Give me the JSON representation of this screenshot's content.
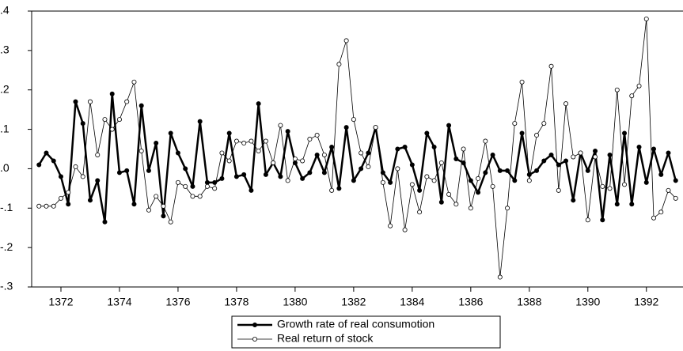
{
  "chart_data": {
    "type": "line",
    "x": [
      1371.25,
      1371.5,
      1371.75,
      1372,
      1372.25,
      1372.5,
      1372.75,
      1373,
      1373.25,
      1373.5,
      1373.75,
      1374,
      1374.25,
      1374.5,
      1374.75,
      1375,
      1375.25,
      1375.5,
      1375.75,
      1376,
      1376.25,
      1376.5,
      1376.75,
      1377,
      1377.25,
      1377.5,
      1377.75,
      1378,
      1378.25,
      1378.5,
      1378.75,
      1379,
      1379.25,
      1379.5,
      1379.75,
      1380,
      1380.25,
      1380.5,
      1380.75,
      1381,
      1381.25,
      1381.5,
      1381.75,
      1382,
      1382.25,
      1382.5,
      1382.75,
      1383,
      1383.25,
      1383.5,
      1383.75,
      1384,
      1384.25,
      1384.5,
      1384.75,
      1385,
      1385.25,
      1385.5,
      1385.75,
      1386,
      1386.25,
      1386.5,
      1386.75,
      1387,
      1387.25,
      1387.5,
      1387.75,
      1388,
      1388.25,
      1388.5,
      1388.75,
      1389,
      1389.25,
      1389.5,
      1389.75,
      1390,
      1390.25,
      1390.5,
      1390.75,
      1391,
      1391.25,
      1391.5,
      1391.75,
      1392,
      1392.25,
      1392.5,
      1392.75,
      1393
    ],
    "series": [
      {
        "name": "Growth rate of real consumotion",
        "color": "#000000",
        "values": [
          0.01,
          0.04,
          0.02,
          -0.02,
          -0.09,
          0.17,
          0.115,
          -0.08,
          -0.03,
          -0.135,
          0.19,
          -0.01,
          -0.005,
          -0.09,
          0.16,
          -0.005,
          0.065,
          -0.12,
          0.09,
          0.04,
          0,
          -0.045,
          0.12,
          -0.035,
          -0.035,
          -0.025,
          0.09,
          -0.02,
          -0.015,
          -0.055,
          0.165,
          -0.015,
          0.015,
          -0.02,
          0.095,
          0.015,
          -0.025,
          -0.01,
          0.035,
          -0.01,
          0.055,
          -0.05,
          0.105,
          -0.03,
          0,
          0.04,
          0.105,
          -0.01,
          -0.035,
          0.05,
          0.055,
          0.01,
          -0.055,
          0.09,
          0.055,
          -0.085,
          0.11,
          0.025,
          0.015,
          -0.03,
          -0.06,
          -0.01,
          0.035,
          -0.005,
          -0.005,
          -0.03,
          0.09,
          -0.015,
          -0.005,
          0.02,
          0.035,
          0.01,
          0.02,
          -0.08,
          0.04,
          -0.005,
          0.045,
          -0.13,
          0.035,
          -0.09,
          0.09,
          -0.09,
          0.055,
          -0.035,
          0.05,
          -0.015,
          0.04,
          -0.03
        ]
      },
      {
        "name": "Real return of stock",
        "color": "#000000",
        "values": [
          -0.095,
          -0.095,
          -0.095,
          -0.075,
          -0.06,
          0.005,
          -0.02,
          0.17,
          0.035,
          0.125,
          0.1,
          0.125,
          0.17,
          0.22,
          0.045,
          -0.105,
          -0.07,
          -0.095,
          -0.135,
          -0.035,
          -0.045,
          -0.07,
          -0.07,
          -0.045,
          -0.05,
          0.04,
          0.02,
          0.07,
          0.065,
          0.07,
          0.045,
          0.07,
          0.015,
          0.11,
          -0.03,
          0.025,
          0.02,
          0.075,
          0.085,
          0.035,
          -0.055,
          0.265,
          0.325,
          0.125,
          0.04,
          0.005,
          0.105,
          -0.035,
          -0.145,
          0,
          -0.155,
          -0.04,
          -0.11,
          -0.02,
          -0.03,
          0.015,
          -0.065,
          -0.09,
          0.05,
          -0.1,
          -0.025,
          0.07,
          -0.045,
          -0.275,
          -0.1,
          0.115,
          0.22,
          -0.03,
          0.085,
          0.115,
          0.26,
          -0.055,
          0.165,
          0.03,
          0.04,
          -0.13,
          0.03,
          -0.045,
          -0.05,
          0.2,
          -0.04,
          0.185,
          0.21,
          0.38,
          -0.125,
          -0.11,
          -0.055,
          -0.075
        ]
      }
    ],
    "xlim": [
      1371,
      1393.25
    ],
    "xticks": [
      1372,
      1374,
      1376,
      1378,
      1380,
      1382,
      1384,
      1386,
      1388,
      1390,
      1392
    ],
    "ylim": [
      -0.3,
      0.4
    ],
    "yticks": [
      {
        "value": -0.3,
        "label": "-.3"
      },
      {
        "value": -0.2,
        "label": "-.2"
      },
      {
        "value": -0.1,
        "label": "-.1"
      },
      {
        "value": 0,
        "label": ".0"
      },
      {
        "value": 0.1,
        "label": ".1"
      },
      {
        "value": 0.2,
        "label": ".2"
      },
      {
        "value": 0.3,
        "label": ".3"
      },
      {
        "value": 0.4,
        "label": ".4"
      }
    ],
    "legend": "bottom"
  }
}
